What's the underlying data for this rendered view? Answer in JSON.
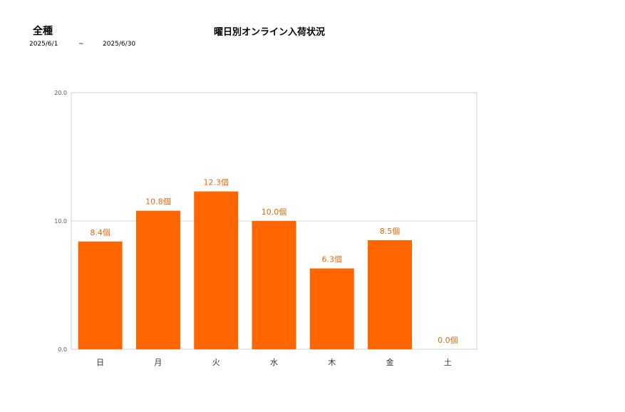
{
  "header": {
    "category": "全種",
    "date_from": "2025/6/1",
    "date_sep": "~",
    "date_to": "2025/6/30"
  },
  "chart_data": {
    "type": "bar",
    "title": "曜日別オンライン入荷状況",
    "xlabel": "",
    "ylabel": "",
    "categories": [
      "日",
      "月",
      "火",
      "水",
      "木",
      "金",
      "土"
    ],
    "values": [
      8.4,
      10.8,
      12.3,
      10.0,
      6.3,
      8.5,
      0.0
    ],
    "value_labels": [
      "8.4個",
      "10.8個",
      "12.3個",
      "10.0個",
      "6.3個",
      "8.5個",
      "0.0個"
    ],
    "y_ticks": [
      "0.0",
      "10.0",
      "20.0"
    ],
    "ylim": [
      0,
      20
    ],
    "grid": true,
    "legend": "none",
    "bar_color": "#ff6600",
    "label_color": "#e0690f"
  }
}
